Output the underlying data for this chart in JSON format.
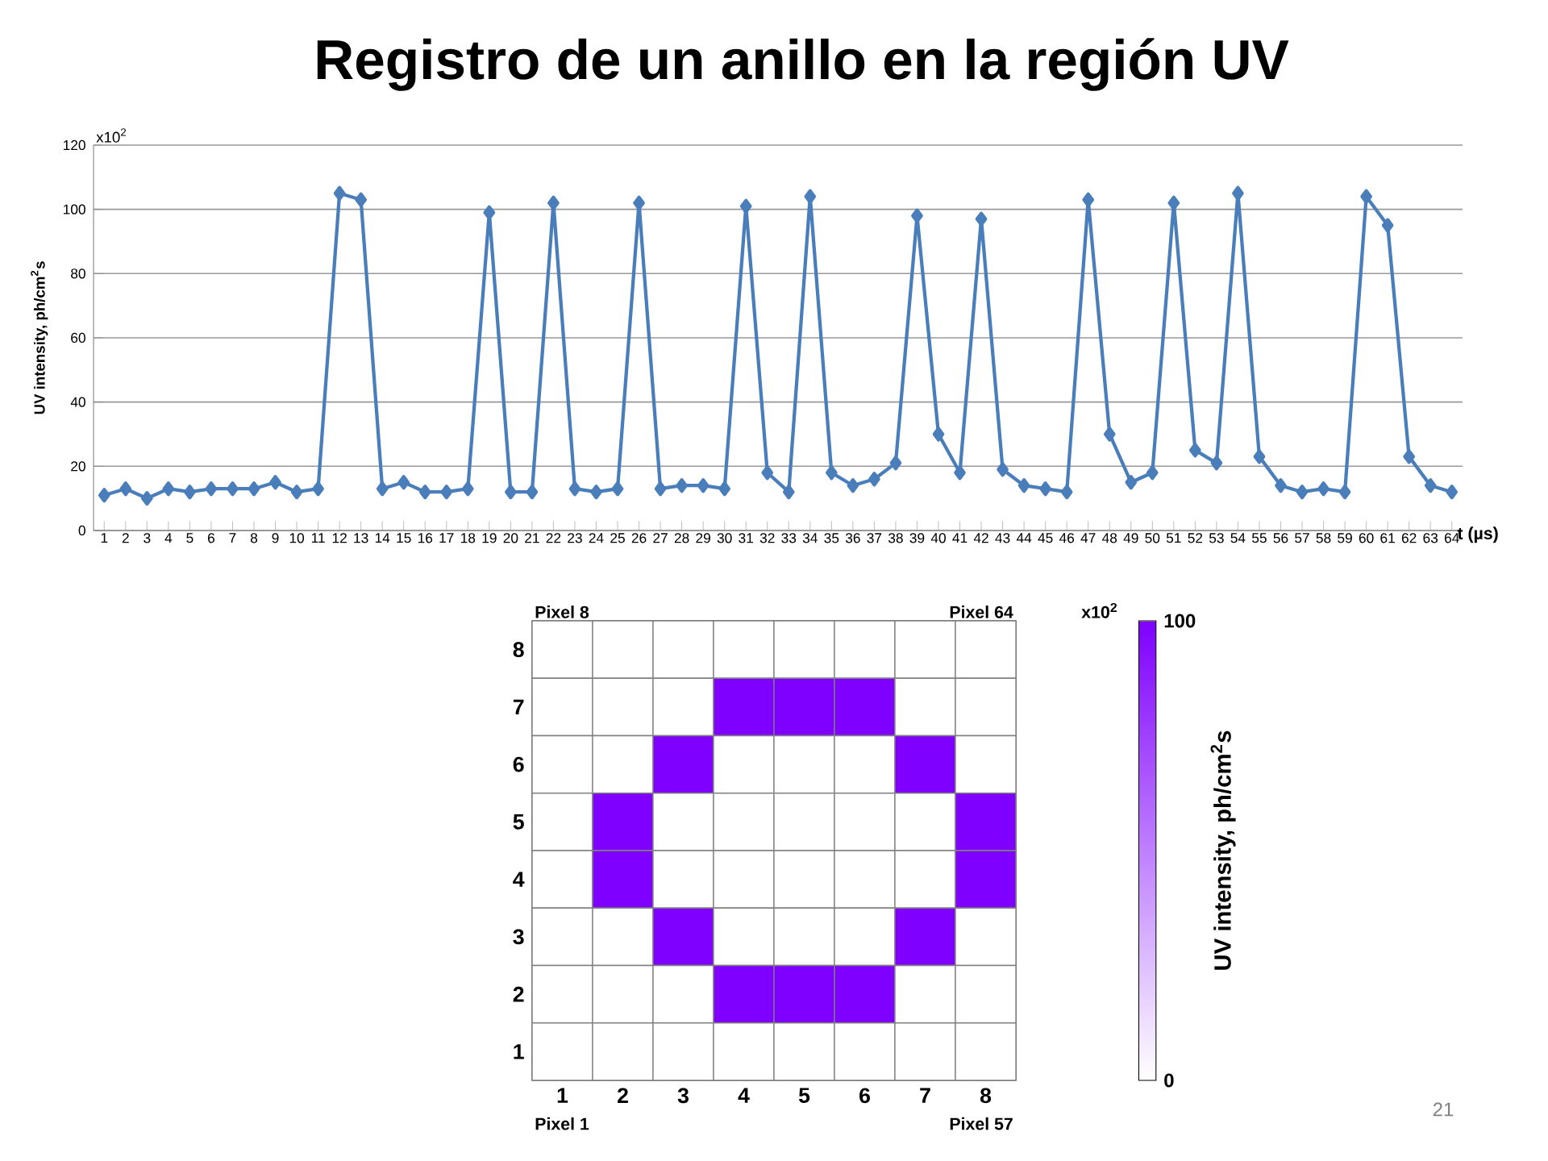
{
  "chart_data": [
    {
      "type": "line",
      "title": "Registro de un anillo en la región UV",
      "xlabel": "t (µs)",
      "ylabel": "UV intensity, ph/cm$^{2}$s",
      "annotations": [
        "x10$^{2}$"
      ],
      "categories": [
        "1",
        "2",
        "3",
        "4",
        "5",
        "6",
        "7",
        "8",
        "9",
        "10",
        "11",
        "12",
        "13",
        "14",
        "15",
        "16",
        "17",
        "18",
        "19",
        "20",
        "21",
        "22",
        "23",
        "24",
        "25",
        "26",
        "27",
        "28",
        "29",
        "30",
        "31",
        "32",
        "33",
        "34",
        "35",
        "36",
        "37",
        "38",
        "39",
        "40",
        "41",
        "42",
        "43",
        "44",
        "45",
        "46",
        "47",
        "48",
        "49",
        "50",
        "51",
        "52",
        "53",
        "54",
        "55",
        "56",
        "57",
        "58",
        "59",
        "60",
        "61",
        "62",
        "63",
        "64"
      ],
      "series": [
        {
          "color": "#4a7ebb",
          "values": [
            11,
            13,
            10,
            13,
            12,
            13,
            13,
            13,
            15,
            12,
            13,
            105,
            103,
            13,
            15,
            12,
            12,
            13,
            99,
            12,
            12,
            102,
            13,
            12,
            13,
            102,
            13,
            14,
            14,
            13,
            101,
            18,
            12,
            104,
            18,
            14,
            16,
            21,
            98,
            30,
            18,
            97,
            19,
            14,
            13,
            12,
            103,
            30,
            15,
            18,
            102,
            25,
            21,
            105,
            23,
            14,
            12,
            13,
            12,
            104,
            95,
            23,
            14,
            12
          ]
        }
      ],
      "ylim": [
        0,
        120
      ],
      "yticks": [
        0,
        20,
        40,
        60,
        80,
        100,
        120
      ],
      "grid": "y",
      "marker": "diamond",
      "line_style": "solid"
    },
    {
      "type": "heatmap",
      "clabel": "UV intensity, ph/cm$^{2}$s",
      "color": "#7f00ff",
      "categories": [
        "1",
        "2",
        "3",
        "4",
        "5",
        "6",
        "7",
        "8"
      ],
      "y_categories": [
        "8",
        "7",
        "6",
        "5",
        "4",
        "3",
        "2",
        "1"
      ],
      "cells": [
        [
          0,
          0,
          0,
          0,
          0,
          0,
          0,
          0
        ],
        [
          0,
          0,
          0,
          100,
          100,
          100,
          0,
          0
        ],
        [
          0,
          0,
          100,
          0,
          0,
          0,
          100,
          0
        ],
        [
          0,
          100,
          0,
          0,
          0,
          0,
          0,
          100
        ],
        [
          0,
          100,
          0,
          0,
          0,
          0,
          0,
          100
        ],
        [
          0,
          0,
          100,
          0,
          0,
          0,
          100,
          0
        ],
        [
          0,
          0,
          0,
          100,
          100,
          100,
          0,
          0
        ],
        [
          0,
          0,
          0,
          0,
          0,
          0,
          0,
          0
        ]
      ],
      "clim": [
        0,
        100
      ],
      "cticks": [
        0,
        100
      ],
      "annotations": [
        "Pixel 1",
        "Pixel 8",
        "Pixel 57",
        "Pixel 64",
        "x10$^{2}$",
        "21"
      ]
    }
  ]
}
